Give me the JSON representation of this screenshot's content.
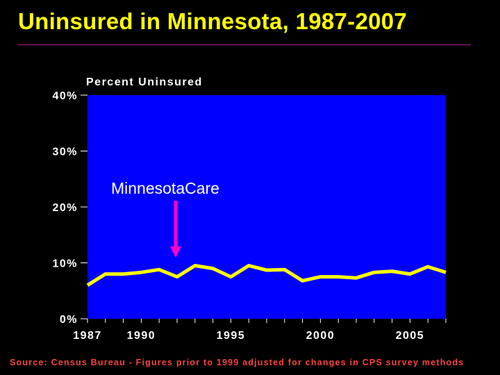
{
  "title": "Uninsured in Minnesota, 1987-2007",
  "footer": "Source: Census Bureau - Figures prior to 1999 adjusted for changes in CPS survey methods",
  "colors": {
    "background": "#000000",
    "plot_area": "#0000ff",
    "line": "#ffff00",
    "title": "#ffff00",
    "rule": "#b0179a",
    "arrow": "#ff00cc",
    "footer": "#ff4040"
  },
  "chart_data": {
    "type": "line",
    "title": "",
    "ylabel": "Percent Uninsured",
    "xlabel": "",
    "ylim": [
      0,
      40
    ],
    "xlim": [
      1987,
      2007
    ],
    "yticks": [
      0,
      10,
      20,
      30,
      40
    ],
    "ytick_labels": [
      "0%",
      "10%",
      "20%",
      "30%",
      "40%"
    ],
    "xticks": [
      1987,
      1990,
      1995,
      2000,
      2005
    ],
    "xtick_labels": [
      "1987",
      "1990",
      "1995",
      "2000",
      "2005"
    ],
    "grid": false,
    "series": [
      {
        "x": [
          1987,
          1988,
          1989,
          1990,
          1991,
          1992,
          1993,
          1994,
          1995,
          1996,
          1997,
          1998,
          1999,
          2000,
          2001,
          2002,
          2003,
          2004,
          2005,
          2006,
          2007
        ],
        "values": [
          6.0,
          8.0,
          8.0,
          8.3,
          8.8,
          7.5,
          9.5,
          9.0,
          7.5,
          9.5,
          8.7,
          8.8,
          6.8,
          7.5,
          7.5,
          7.3,
          8.3,
          8.5,
          8.0,
          9.3,
          8.3
        ]
      }
    ],
    "annotations": [
      {
        "text": "MinnesotaCare",
        "x": 1992,
        "y": 7.5
      }
    ]
  }
}
